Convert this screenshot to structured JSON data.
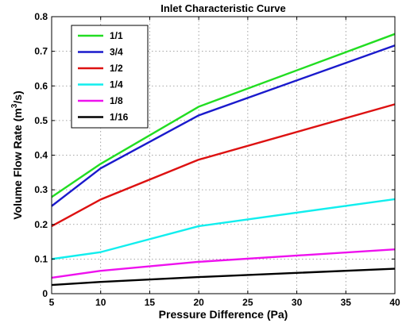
{
  "chart_data": {
    "type": "line",
    "title": "Inlet Characteristic Curve",
    "xlabel": "Pressure Difference (Pa)",
    "ylabel_main": "Volume Flow Rate (m",
    "ylabel_sup": "3",
    "ylabel_end": "/s)",
    "x": [
      5,
      10,
      20,
      40
    ],
    "xlim": [
      5,
      40
    ],
    "ylim": [
      0,
      0.8
    ],
    "xticks": [
      5,
      10,
      15,
      20,
      25,
      30,
      35,
      40
    ],
    "yticks": [
      0,
      0.1,
      0.2,
      0.3,
      0.4,
      0.5,
      0.6,
      0.7,
      0.8
    ],
    "xtick_labels": [
      "5",
      "10",
      "15",
      "20",
      "25",
      "30",
      "35",
      "40"
    ],
    "ytick_labels": [
      "0",
      "0.1",
      "0.2",
      "0.3",
      "0.4",
      "0.5",
      "0.6",
      "0.7",
      "0.8"
    ],
    "grid": true,
    "legend_position": "top-left",
    "series": [
      {
        "name": "1/1",
        "color": "#22dd22",
        "values": [
          0.279,
          0.375,
          0.54,
          0.75
        ]
      },
      {
        "name": "3/4",
        "color": "#1a1acc",
        "values": [
          0.253,
          0.362,
          0.515,
          0.717
        ]
      },
      {
        "name": "1/2",
        "color": "#dd1111",
        "values": [
          0.195,
          0.272,
          0.387,
          0.547
        ]
      },
      {
        "name": "1/4",
        "color": "#11eeee",
        "values": [
          0.1,
          0.12,
          0.195,
          0.273
        ]
      },
      {
        "name": "1/8",
        "color": "#ee11ee",
        "values": [
          0.046,
          0.066,
          0.092,
          0.128
        ]
      },
      {
        "name": "1/16",
        "color": "#000000",
        "values": [
          0.025,
          0.034,
          0.048,
          0.072
        ]
      }
    ]
  }
}
